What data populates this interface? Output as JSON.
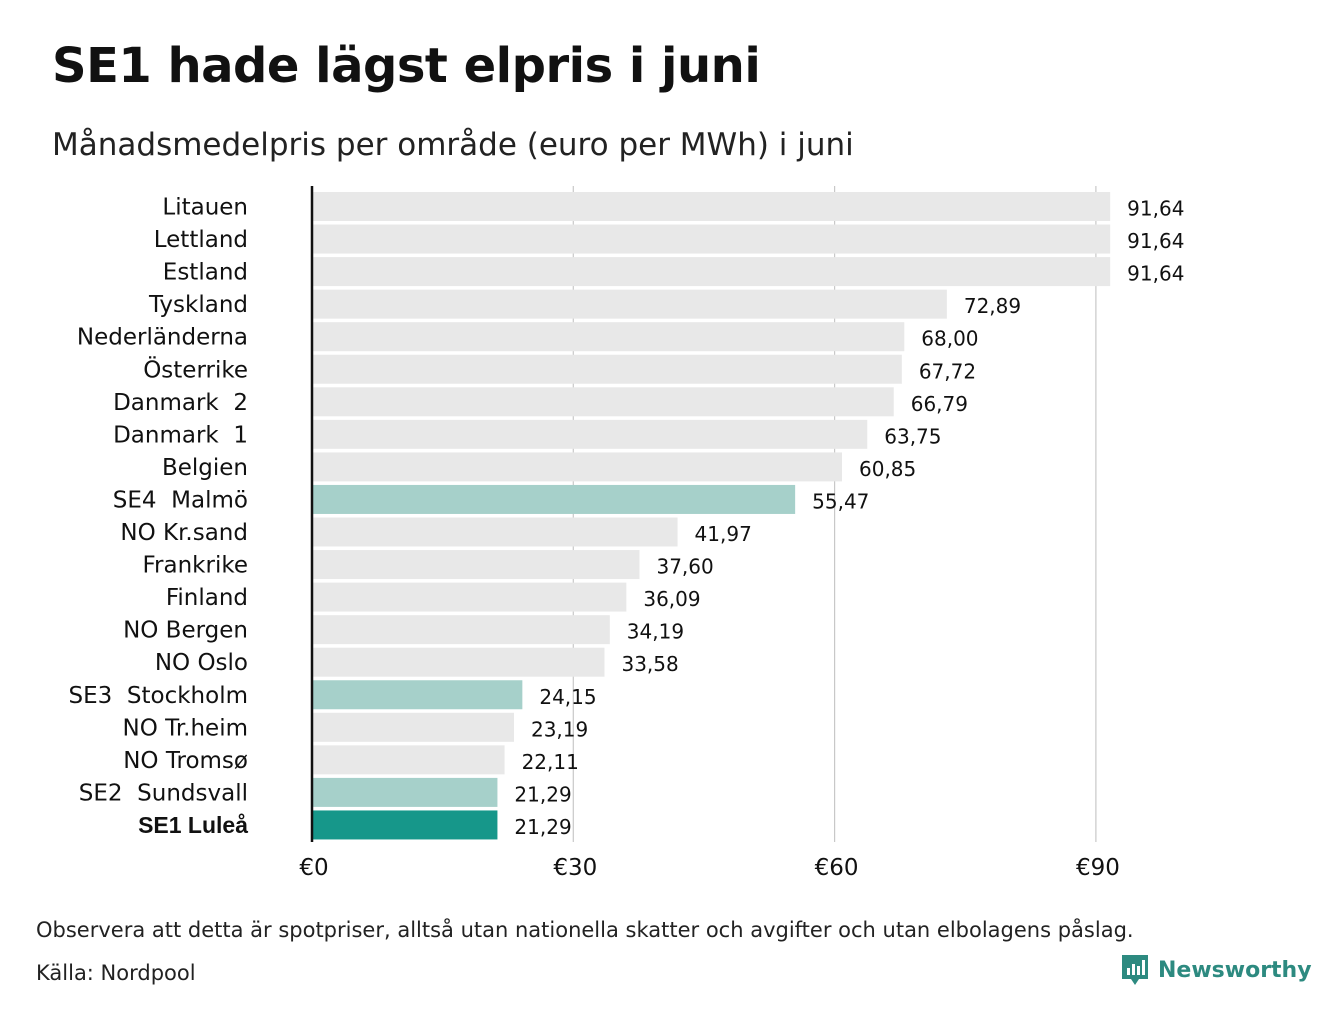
{
  "title": "SE1 hade lägst elpris i juni",
  "subtitle": "Månadsmedelpris per område (euro per MWh) i juni",
  "note": "Observera att detta är spotpriser, alltså utan nationella skatter och avgifter och utan elbolagens påslag.",
  "source": "Källa: Nordpool",
  "logo": {
    "text": "Newsworthy"
  },
  "colors": {
    "default_bar": "#e8e8e8",
    "se_bar": "#a6d0ca",
    "highlight_bar": "#16978a",
    "grid": "#c8c8c8",
    "axis": "#111111",
    "logo": "#2d8a80"
  },
  "chart_data": {
    "type": "bar",
    "orientation": "horizontal",
    "title": "SE1 hade lägst elpris i juni",
    "subtitle": "Månadsmedelpris per område (euro per MWh) i juni",
    "xlabel": "",
    "ylabel": "",
    "xlim": [
      0,
      100
    ],
    "grid": true,
    "ticks": [
      0,
      30,
      60,
      90
    ],
    "tick_labels": [
      "€0",
      "€30",
      "€60",
      "€90"
    ],
    "categories": [
      "Litauen",
      "Lettland",
      "Estland",
      "Tyskland",
      "Nederländerna",
      "Österrike",
      "Danmark  2",
      "Danmark  1",
      "Belgien",
      "SE4  Malmö",
      "NO Kr.sand",
      "Frankrike",
      "Finland",
      "NO Bergen",
      "NO Oslo",
      "SE3  Stockholm",
      "NO Tr.heim",
      "NO Tromsø",
      "SE2  Sundsvall",
      "SE1 Luleå"
    ],
    "values": [
      91.64,
      91.64,
      91.64,
      72.89,
      68.0,
      67.72,
      66.79,
      63.75,
      60.85,
      55.47,
      41.97,
      37.6,
      36.09,
      34.19,
      33.58,
      24.15,
      23.19,
      22.11,
      21.29,
      21.29
    ],
    "value_labels": [
      "91,64",
      "91,64",
      "91,64",
      "72,89",
      "68,00",
      "67,72",
      "66,79",
      "63,75",
      "60,85",
      "55,47",
      "41,97",
      "37,60",
      "36,09",
      "34,19",
      "33,58",
      "24,15",
      "23,19",
      "22,11",
      "21,29",
      "21,29"
    ],
    "bar_styles": [
      "default",
      "default",
      "default",
      "default",
      "default",
      "default",
      "default",
      "default",
      "default",
      "se",
      "default",
      "default",
      "default",
      "default",
      "default",
      "se",
      "default",
      "default",
      "se",
      "highlight"
    ]
  }
}
